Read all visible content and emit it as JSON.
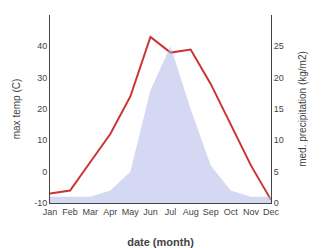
{
  "chart_data": {
    "type": "line",
    "categories": [
      "Jan",
      "Feb",
      "Mar",
      "Apr",
      "May",
      "Jun",
      "Jul",
      "Aug",
      "Sep",
      "Oct",
      "Nov",
      "Dec"
    ],
    "xlabel": "date (month)",
    "ylabel": "max temp (C)",
    "y2label": "med. precipitation (kg/m2)",
    "series": [
      {
        "type": "area",
        "axis": "y2",
        "color": "#b0b8e8",
        "values": [
          1,
          1,
          1,
          2,
          5,
          18,
          25,
          15,
          6,
          2,
          1,
          1
        ]
      },
      {
        "type": "line",
        "color": "#cc3333",
        "values": [
          -7,
          -6,
          3,
          12,
          24,
          43,
          38,
          39,
          28,
          15,
          2,
          -9
        ]
      }
    ],
    "ylim": [
      -10,
      50
    ],
    "yticks": [
      -10,
      0,
      10,
      20,
      30,
      40
    ],
    "y2lim": [
      0,
      30
    ],
    "y2ticks": [
      0,
      5,
      10,
      15,
      20,
      25
    ],
    "grid": false
  }
}
